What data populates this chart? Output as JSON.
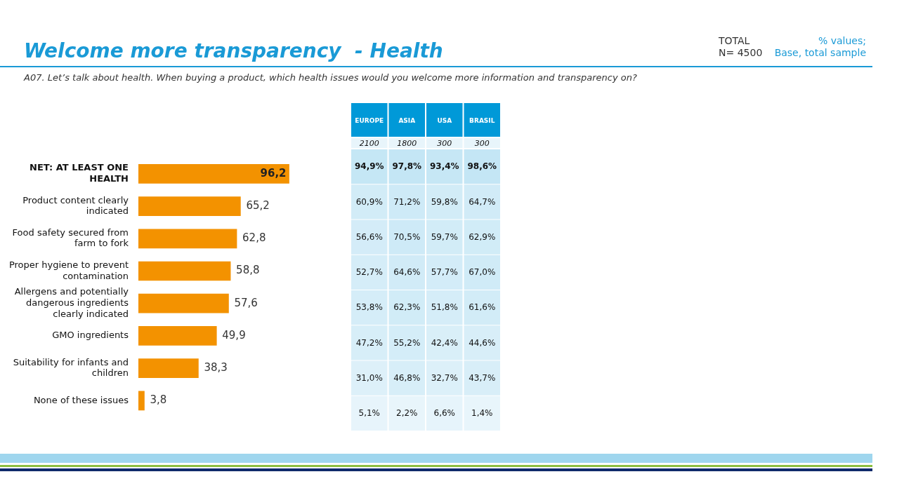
{
  "chart_data": [
    {
      "type": "bar",
      "title": "Welcome more transparency  - Health",
      "subtitle": "A07. Let’s talk about health. When buying a product, which health issues would you welcome more information and transparency on?",
      "annotations": [
        "TOTAL\nN= 4500",
        "% values;\nBase, total sample"
      ],
      "orientation": "horizontal",
      "tick_labels": "y",
      "categories": [
        "NET: AT LEAST ONE HEALTH",
        "Product content clearly indicated",
        "Food safety secured from farm to fork",
        "Proper hygiene to prevent contamination",
        "Allergens and potentially dangerous ingredients clearly indicated",
        "GMO ingredients",
        "Suitability for infants and children",
        "None of these issues"
      ],
      "values": [
        96.2,
        65.2,
        62.8,
        58.8,
        57.6,
        49.9,
        38.3,
        3.8
      ],
      "value_labels": [
        "96,2",
        "65,2",
        "62,8",
        "58,8",
        "57,6",
        "49,9",
        "38,3",
        "3,8"
      ],
      "color": "#f39200"
    },
    {
      "type": "heatmap",
      "categories": [
        "EUROPE",
        "ASIA",
        "USA",
        "BRASIL"
      ],
      "annotations": [
        "2100",
        "1800",
        "300",
        "300"
      ],
      "y_categories": [
        null,
        null,
        null,
        null,
        null,
        null,
        null,
        null
      ],
      "cells": [
        [
          94.9,
          97.8,
          93.4,
          98.6
        ],
        [
          60.9,
          71.2,
          59.8,
          64.7
        ],
        [
          56.6,
          70.5,
          59.7,
          62.9
        ],
        [
          52.7,
          64.6,
          57.7,
          67.0
        ],
        [
          53.8,
          62.3,
          51.8,
          61.6
        ],
        [
          47.2,
          55.2,
          42.4,
          44.6
        ],
        [
          31.0,
          46.8,
          32.7,
          43.7
        ],
        [
          5.1,
          2.2,
          6.6,
          1.4
        ]
      ],
      "cell_labels": [
        [
          "94,9%",
          "97,8%",
          "93,4%",
          "98,6%"
        ],
        [
          "60,9%",
          "71,2%",
          "59,8%",
          "64,7%"
        ],
        [
          "56,6%",
          "70,5%",
          "59,7%",
          "62,9%"
        ],
        [
          "52,7%",
          "64,6%",
          "57,7%",
          "67,0%"
        ],
        [
          "53,8%",
          "62,3%",
          "51,8%",
          "61,6%"
        ],
        [
          "47,2%",
          "55,2%",
          "42,4%",
          "44,6%"
        ],
        [
          "31,0%",
          "46,8%",
          "32,7%",
          "43,7%"
        ],
        [
          "5,1%",
          "2,2%",
          "6,6%",
          "1,4%"
        ]
      ]
    }
  ]
}
